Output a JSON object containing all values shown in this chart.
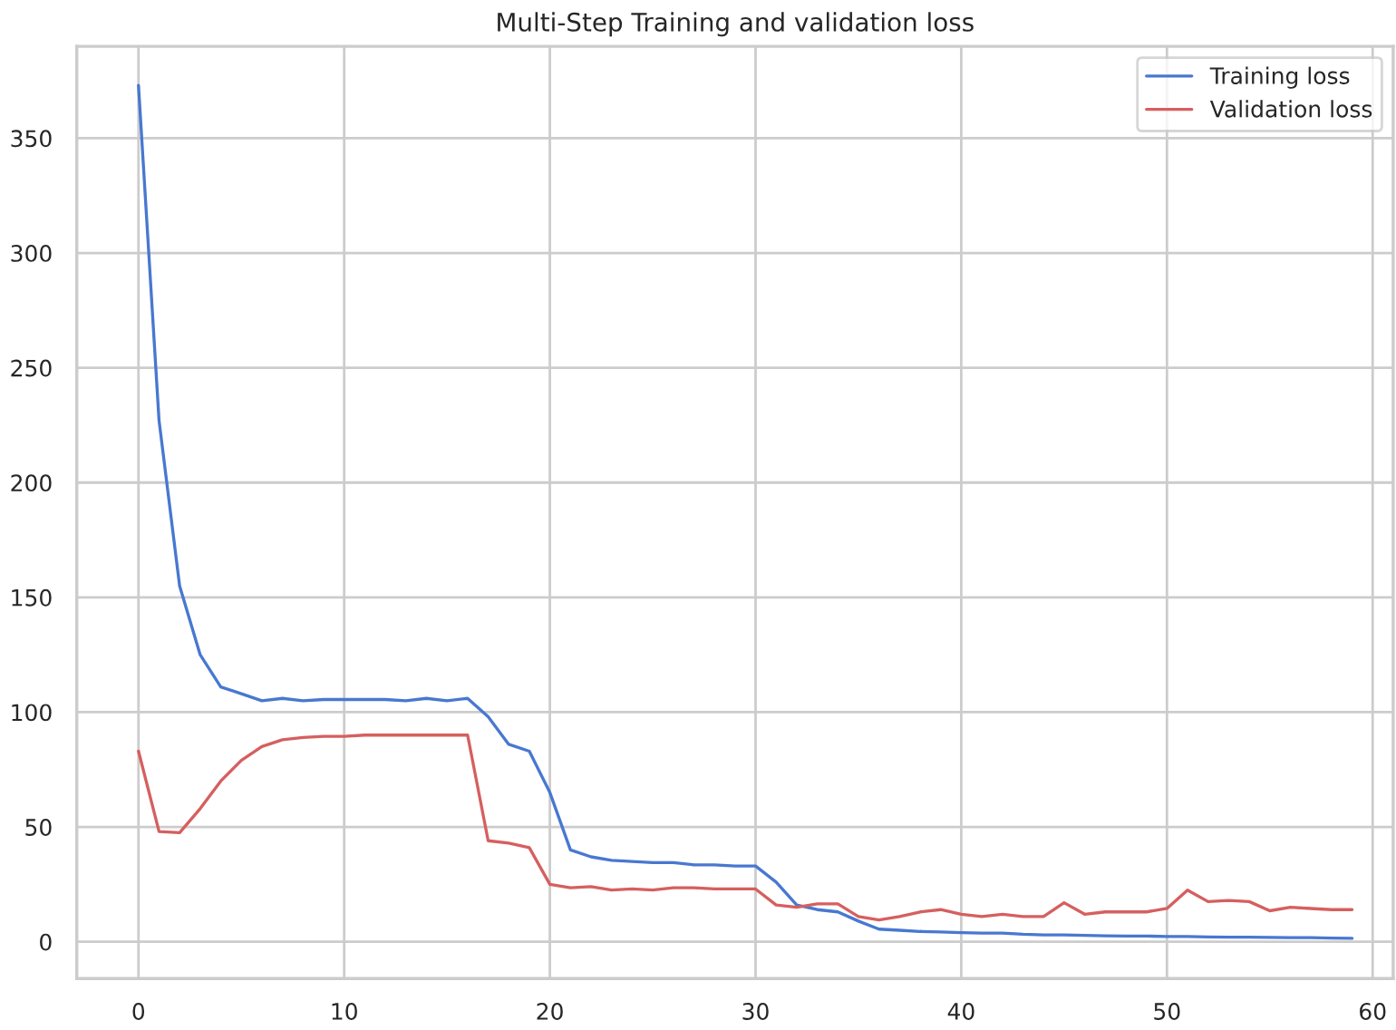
{
  "chart_data": {
    "type": "line",
    "title": "Multi-Step Training and validation loss",
    "x": [
      0,
      1,
      2,
      3,
      4,
      5,
      6,
      7,
      8,
      9,
      10,
      11,
      12,
      13,
      14,
      15,
      16,
      17,
      18,
      19,
      20,
      21,
      22,
      23,
      24,
      25,
      26,
      27,
      28,
      29,
      30,
      31,
      32,
      33,
      34,
      35,
      36,
      37,
      38,
      39,
      40,
      41,
      42,
      43,
      44,
      45,
      46,
      47,
      48,
      49,
      50,
      51,
      52,
      53,
      54,
      55,
      56,
      57,
      58,
      59
    ],
    "series": [
      {
        "name": "Training loss",
        "color": "#4878d0",
        "values": [
          373,
          227,
          155,
          125,
          111,
          108,
          105,
          106,
          105,
          105.5,
          105.5,
          105.5,
          105.5,
          105,
          106,
          105,
          106,
          98,
          86,
          83,
          65,
          40,
          37,
          35.5,
          35,
          34.5,
          34.5,
          33.5,
          33.5,
          33,
          33,
          26,
          16,
          14,
          13,
          9,
          5.5,
          5,
          4.5,
          4.3,
          4,
          3.8,
          3.8,
          3.3,
          3,
          3,
          2.8,
          2.6,
          2.5,
          2.5,
          2.3,
          2.3,
          2.1,
          2,
          2,
          1.9,
          1.8,
          1.8,
          1.6,
          1.5
        ]
      },
      {
        "name": "Validation loss",
        "color": "#d65f5f",
        "values": [
          83,
          48,
          47.5,
          58,
          70,
          79,
          85,
          88,
          89,
          89.5,
          89.5,
          90,
          90,
          90,
          90,
          90,
          90,
          44,
          43,
          41,
          25,
          23.5,
          24,
          22.5,
          23,
          22.5,
          23.5,
          23.5,
          23,
          23,
          23,
          16,
          15,
          16.5,
          16.5,
          11,
          9.5,
          11,
          13,
          14,
          12,
          11,
          12,
          11,
          11,
          17,
          12,
          13,
          13,
          13,
          14.5,
          22.5,
          17.5,
          18,
          17.5,
          13.5,
          15,
          14.5,
          14,
          14
        ]
      }
    ],
    "xlim": [
      -3,
      61
    ],
    "ylim": [
      -16,
      390
    ],
    "xticks": [
      0,
      10,
      20,
      30,
      40,
      50,
      60
    ],
    "yticks": [
      0,
      50,
      100,
      150,
      200,
      250,
      300,
      350
    ],
    "grid": true,
    "legend": "top right",
    "marker": "none",
    "line_style": "solid"
  }
}
